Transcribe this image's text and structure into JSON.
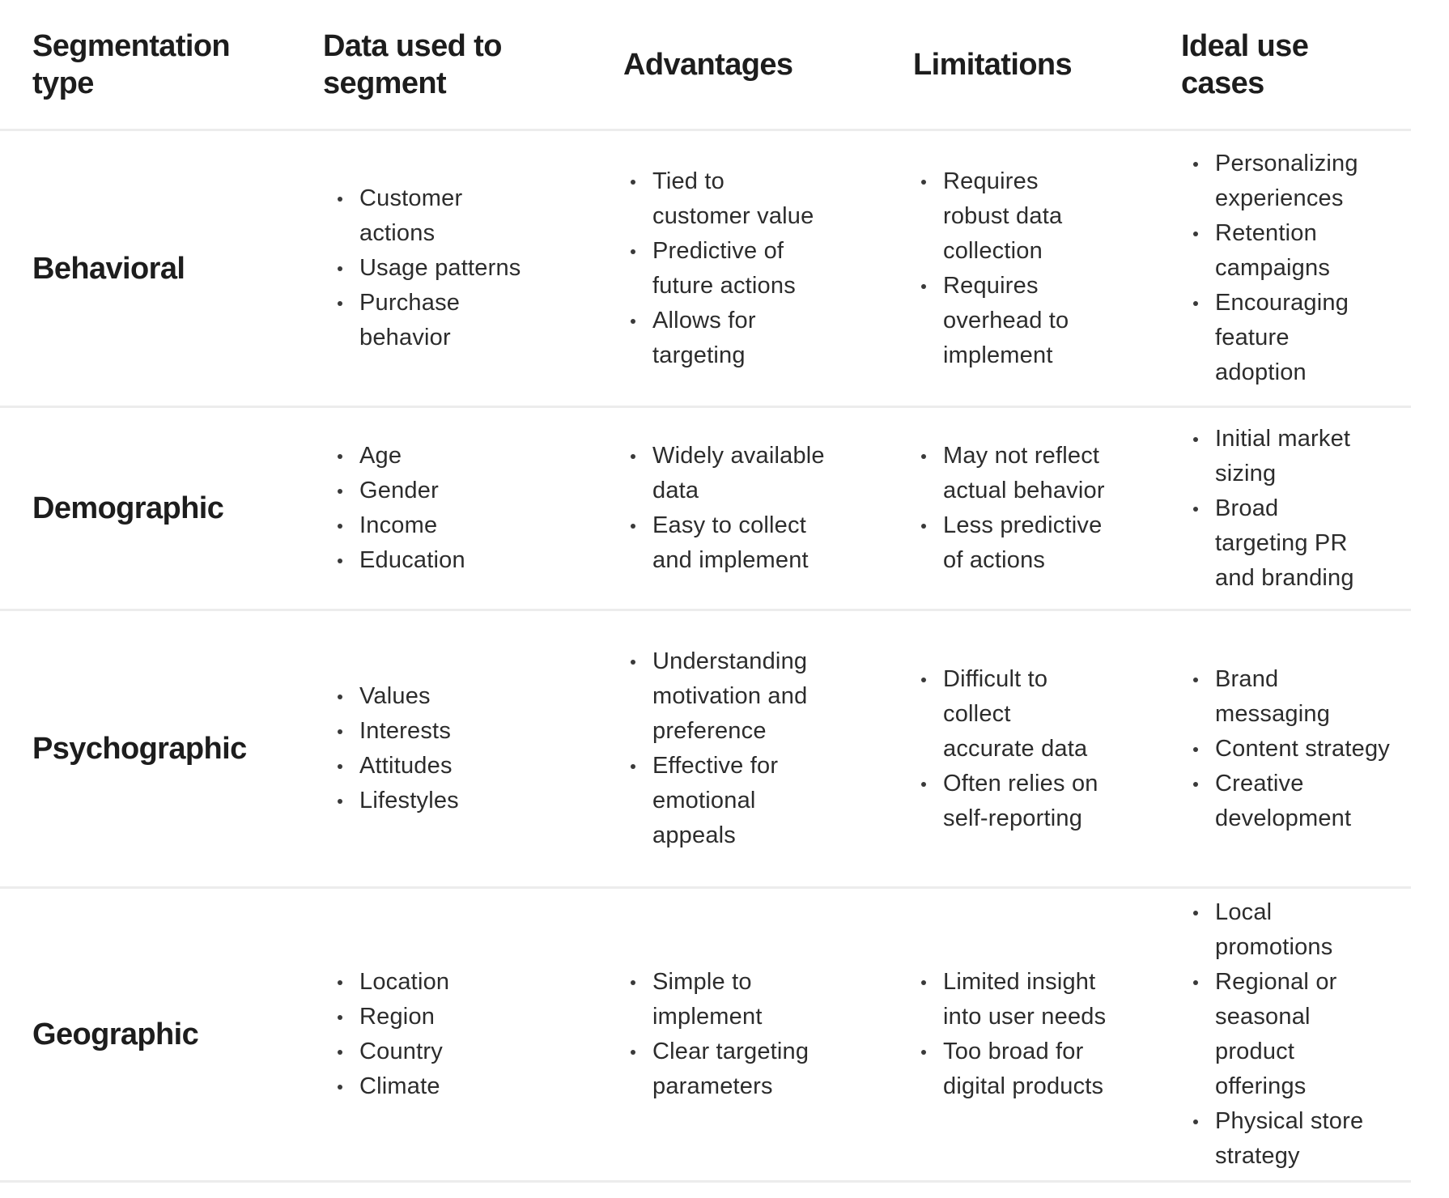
{
  "table": {
    "columns": [
      "Segmentation\ntype",
      "Data used to\nsegment",
      "Advantages",
      "Limitations",
      "Ideal use\ncases"
    ],
    "rows": [
      {
        "type": "Behavioral",
        "data_used_to_segment": [
          "Customer\nactions",
          "Usage patterns",
          "Purchase\nbehavior"
        ],
        "advantages": [
          "Tied to\ncustomer value",
          "Predictive of\nfuture actions",
          "Allows for\ntargeting"
        ],
        "limitations": [
          "Requires\nrobust data\ncollection",
          "Requires\noverhead to\nimplement"
        ],
        "ideal_use_cases": [
          "Personalizing\nexperiences",
          "Retention\ncampaigns",
          "Encouraging\nfeature\nadoption"
        ]
      },
      {
        "type": "Demographic",
        "data_used_to_segment": [
          "Age",
          "Gender",
          "Income",
          "Education"
        ],
        "advantages": [
          "Widely available\ndata",
          "Easy to collect\nand implement"
        ],
        "limitations": [
          "May not reflect\nactual behavior",
          "Less predictive\nof actions"
        ],
        "ideal_use_cases": [
          "Initial market\nsizing",
          "Broad\ntargeting PR\nand branding"
        ]
      },
      {
        "type": "Psychographic",
        "data_used_to_segment": [
          "Values",
          "Interests",
          "Attitudes",
          "Lifestyles"
        ],
        "advantages": [
          "Understanding\nmotivation and\npreference",
          "Effective for\nemotional\nappeals"
        ],
        "limitations": [
          "Difficult to\ncollect\naccurate data",
          "Often relies on\nself-reporting"
        ],
        "ideal_use_cases": [
          "Brand messaging",
          "Content strategy",
          "Creative\ndevelopment"
        ]
      },
      {
        "type": "Geographic",
        "data_used_to_segment": [
          "Location",
          "Region",
          "Country",
          "Climate"
        ],
        "advantages": [
          "Simple to\nimplement",
          "Clear targeting\nparameters"
        ],
        "limitations": [
          "Limited insight\ninto user needs",
          "Too broad for\ndigital products"
        ],
        "ideal_use_cases": [
          "Local\npromotions",
          "Regional or\nseasonal product\nofferings",
          "Physical store\nstrategy"
        ]
      }
    ]
  },
  "colors": {
    "background": "#ffffff",
    "heading_text": "#1d1d1d",
    "body_text": "#2c2c2c",
    "divider": "#ececec"
  }
}
